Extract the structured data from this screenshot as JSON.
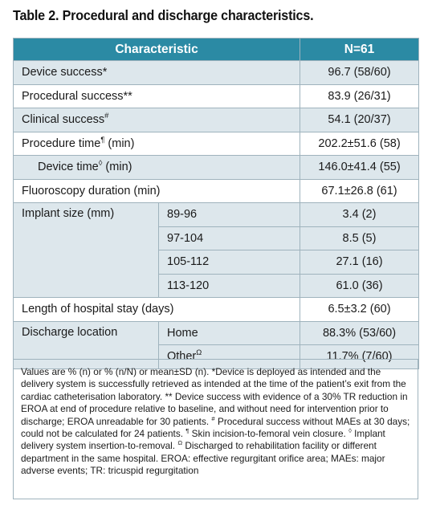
{
  "title": "Table 2. Procedural and discharge characteristics.",
  "header": {
    "characteristic": "Characteristic",
    "n": "N=61"
  },
  "rows": {
    "device_success": {
      "label": "Device success*",
      "value": "96.7 (58/60)"
    },
    "procedural_success": {
      "label": "Procedural success**",
      "value": "83.9 (26/31)"
    },
    "clinical_success": {
      "label": "Clinical success",
      "sup": "#",
      "value": "54.1 (20/37)"
    },
    "procedure_time": {
      "label": "Procedure time",
      "sup": "¶",
      "label_tail": " (min)",
      "value": "202.2±51.6 (58)"
    },
    "device_time": {
      "label": "Device time",
      "sup": "◊",
      "label_tail": " (min)",
      "value": "146.0±41.4 (55)"
    },
    "fluoroscopy": {
      "label": "Fluoroscopy duration (min)",
      "value": "67.1±26.8 (61)"
    },
    "implant_size": {
      "label": "Implant size (mm)",
      "items": [
        {
          "size": "89-96",
          "value": "3.4 (2)"
        },
        {
          "size": "97-104",
          "value": "8.5 (5)"
        },
        {
          "size": "105-112",
          "value": "27.1 (16)"
        },
        {
          "size": "113-120",
          "value": "61.0 (36)"
        }
      ]
    },
    "hospital_stay": {
      "label": "Length of hospital stay (days)",
      "value": "6.5±3.2 (60)"
    },
    "discharge": {
      "label": "Discharge location",
      "home": {
        "label": "Home",
        "value": "88.3% (53/60)"
      },
      "other": {
        "label": "Other",
        "sup": "Ω",
        "value": "11.7% (7/60)"
      }
    }
  },
  "footnote": {
    "part1": "Values are % (n) or % (n/N) or mean±SD (n). *Device is deployed as intended and the delivery system is successfully retrieved as intended at the time of the patient’s exit from the cardiac catheterisation laboratory. ** Device success with evidence of a 30% TR reduction in EROA at end of procedure relative to baseline, and without need for intervention prior to discharge; EROA unreadable for 30 patients. ",
    "sym_hash": "#",
    "part2": " Procedural success without MAEs at 30 days; could not be calculated for 24 patients. ",
    "sym_pilcrow": "¶",
    "part3": " Skin incision-to-femoral vein closure. ",
    "sym_diamond": "◊",
    "part4": " Implant delivery system insertion-to-removal. ",
    "sym_omega": "Ω",
    "part5": " Discharged to rehabilitation facility or different department in the same hospital. EROA: effective regurgitant orifice area; MAEs: major adverse events; TR: tricuspid regurgitation"
  },
  "colors": {
    "header_bg": "#2b8aa4",
    "row_shade": "#dde7ec",
    "border": "#9fb3bd"
  }
}
